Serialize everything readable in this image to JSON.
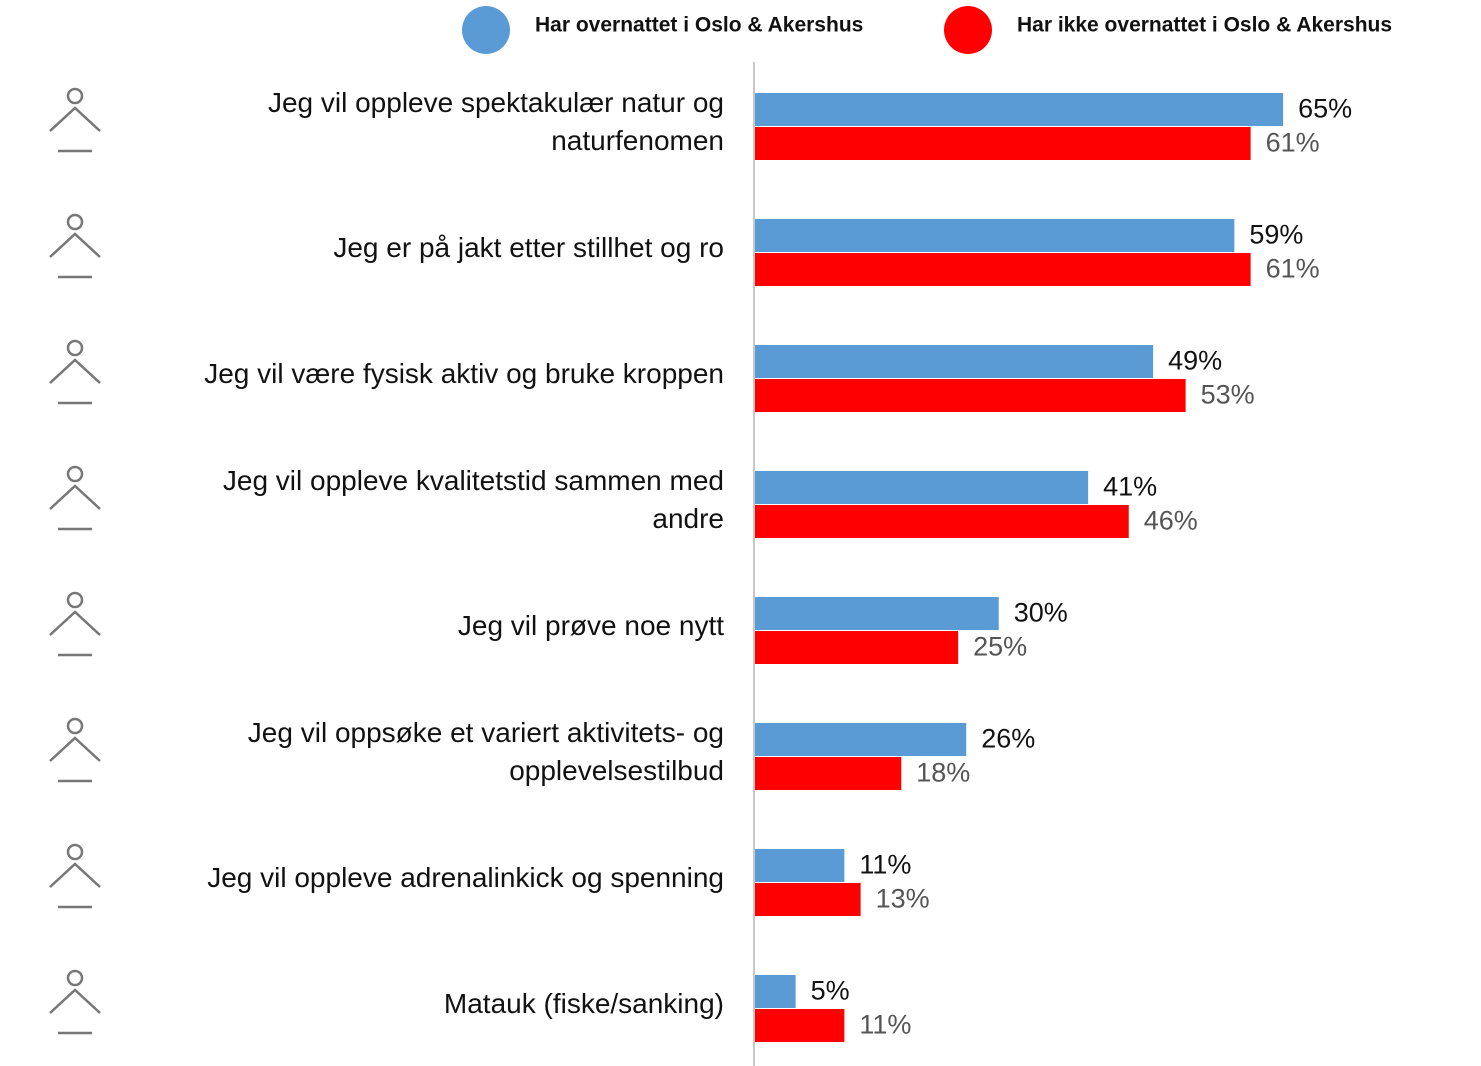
{
  "chart_data": {
    "type": "bar",
    "orientation": "horizontal",
    "categories": [
      "Jeg vil oppleve spektakulær natur og naturfenomen",
      "Jeg er på jakt etter stillhet og ro",
      "Jeg vil være fysisk aktiv og bruke kroppen",
      "Jeg vil oppleve kvalitetstid sammen med andre",
      "Jeg vil prøve noe nytt",
      "Jeg vil oppsøke et variert aktivitets- og opplevelsestilbud",
      "Jeg vil oppleve adrenalinkick og spenning",
      "Matauk (fiske/sanking)"
    ],
    "series": [
      {
        "name": "Har overnattet i Oslo & Akershus",
        "color": "#5b9bd5",
        "values": [
          65,
          59,
          49,
          41,
          30,
          26,
          11,
          5
        ],
        "value_labels": [
          "65%",
          "59%",
          "49%",
          "41%",
          "30%",
          "26%",
          "11%",
          "5%"
        ]
      },
      {
        "name": "Har ikke overnattet i Oslo & Akershus",
        "color": "#ff0000",
        "values": [
          61,
          61,
          53,
          46,
          25,
          18,
          13,
          11
        ],
        "value_labels": [
          "61%",
          "61%",
          "53%",
          "46%",
          "25%",
          "18%",
          "13%",
          "11%"
        ]
      }
    ],
    "xlim": [
      0,
      100
    ],
    "legend": "top"
  }
}
